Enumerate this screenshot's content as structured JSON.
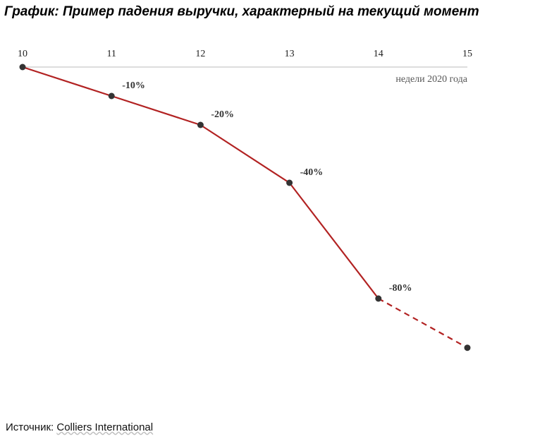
{
  "title": "График: Пример падения выручки, характерный на текущий момент",
  "source": {
    "prefix": "Источник: ",
    "name": "Colliers International"
  },
  "colors": {
    "line": "#b22222",
    "point": "#333333",
    "axis": "#bbbbbb"
  },
  "chart_data": {
    "type": "line",
    "title": "График: Пример падения выручки, характерный на текущий момент",
    "xlabel": "недели  2020 года",
    "ylabel": "",
    "x": [
      10,
      11,
      12,
      13,
      14,
      15
    ],
    "tick_labels": [
      "10",
      "11",
      "12",
      "13",
      "14",
      "15"
    ],
    "xlim": [
      10,
      15
    ],
    "x_axis_position": "top",
    "grid": false,
    "legend": "none",
    "series": [
      {
        "values": [
          0,
          -10,
          -20,
          -40,
          -80,
          -97
        ],
        "labels": [
          "",
          "-10%",
          "-20%",
          "-40%",
          "-80%",
          ""
        ],
        "dashed_from_index": 4
      }
    ]
  }
}
